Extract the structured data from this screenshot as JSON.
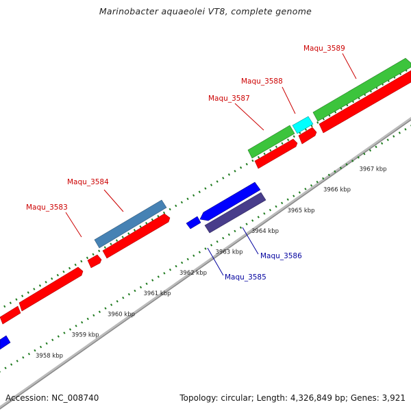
{
  "title": "Marinobacter aquaeolei VT8, complete genome",
  "footer": {
    "accession_label": "Accession:",
    "accession_value": "NC_008740",
    "topology_text": "Topology: circular; Length: 4,326,849 bp; Genes: 3,921"
  },
  "scale_labels": [
    "3958 kbp",
    "3959 kbp",
    "3960 kbp",
    "3961 kbp",
    "3962 kbp",
    "3963 kbp",
    "3964 kbp",
    "3965 kbp",
    "3966 kbp",
    "3967 kbp"
  ],
  "colors": {
    "forward_label": "#cc0000",
    "reverse_label": "#00009e",
    "feature_red": "#ff0000",
    "feature_green": "#3cc43c",
    "feature_cyan": "#00ffff",
    "feature_blue": "#0000ff",
    "feature_steel": "#4682b4",
    "feature_slate": "#483d8b",
    "backbone": "#999999",
    "ticks": "#1e7a1e"
  },
  "gene_labels": [
    {
      "name": "Maqu_3583",
      "strand": "forward"
    },
    {
      "name": "Maqu_3584",
      "strand": "forward"
    },
    {
      "name": "Maqu_3585",
      "strand": "reverse"
    },
    {
      "name": "Maqu_3586",
      "strand": "reverse"
    },
    {
      "name": "Maqu_3587",
      "strand": "forward"
    },
    {
      "name": "Maqu_3588",
      "strand": "forward"
    },
    {
      "name": "Maqu_3589",
      "strand": "forward"
    }
  ]
}
